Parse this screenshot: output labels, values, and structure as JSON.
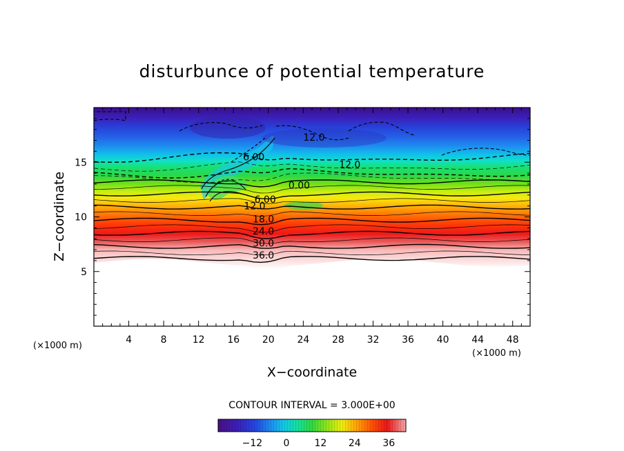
{
  "chart_data": {
    "type": "contour",
    "title": "disturbunce of potential temperature",
    "xlabel": "X−coordinate",
    "ylabel": "Z−coordinate",
    "x_unit_left": "(×1000 m)",
    "x_unit_right": "(×1000 m)",
    "xlim": [
      0,
      50
    ],
    "ylim": [
      0,
      20
    ],
    "x_ticks": [
      4,
      8,
      12,
      16,
      20,
      24,
      28,
      32,
      36,
      40,
      44,
      48
    ],
    "y_ticks": [
      5,
      10,
      15
    ],
    "contour_interval_label": "CONTOUR INTERVAL = 3.000E+00",
    "contour_interval": 3.0,
    "levels": [
      {
        "value": 36,
        "z": 6.2
      },
      {
        "value": 33,
        "z": 6.7
      },
      {
        "value": 30,
        "z": 7.3
      },
      {
        "value": 27,
        "z": 7.9
      },
      {
        "value": 24,
        "z": 8.5
      },
      {
        "value": 21,
        "z": 9.1
      },
      {
        "value": 18,
        "z": 9.7
      },
      {
        "value": 15,
        "z": 10.3
      },
      {
        "value": 12,
        "z": 10.9
      },
      {
        "value": 9,
        "z": 11.5
      },
      {
        "value": 6,
        "z": 12.1
      },
      {
        "value": 3,
        "z": 12.7
      },
      {
        "value": 0,
        "z": 13.2
      },
      {
        "value": -3,
        "z": 13.6
      },
      {
        "value": -6,
        "z": 14.0
      },
      {
        "value": -9,
        "z": 14.6
      },
      {
        "value": -12,
        "z": 15.4
      }
    ],
    "contour_labels": [
      {
        "text": "36.0",
        "x": 18.2,
        "z": 6.5
      },
      {
        "text": "30.0",
        "x": 18.2,
        "z": 7.6
      },
      {
        "text": "24.0",
        "x": 18.2,
        "z": 8.7
      },
      {
        "text": "18.0",
        "x": 18.2,
        "z": 9.8
      },
      {
        "text": "12.0",
        "x": 17.2,
        "z": 11.0
      },
      {
        "text": "6.00",
        "x": 18.4,
        "z": 11.6
      },
      {
        "text": "0.00",
        "x": 22.3,
        "z": 12.9
      },
      {
        "text": "6.00",
        "x": 17.1,
        "z": 15.5
      },
      {
        "text": "12.0",
        "x": 28.1,
        "z": 14.8
      },
      {
        "text": "12.0",
        "x": 24.0,
        "z": 17.3
      }
    ],
    "colorbar": {
      "min": -24,
      "max": 42,
      "ticks": [
        -12,
        0,
        12,
        24,
        36
      ]
    },
    "lower_white_boundary_z": 5.5
  }
}
